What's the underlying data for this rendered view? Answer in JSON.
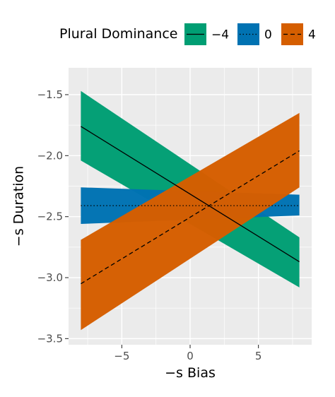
{
  "chart_data": {
    "type": "line",
    "title": "",
    "xlabel": "−s Bias",
    "ylabel": "−s Duration",
    "xlim": [
      -8.9,
      8.9
    ],
    "ylim": [
      -3.55,
      -1.28
    ],
    "x_ticks": [
      -5,
      0,
      5
    ],
    "x_tick_labels": [
      "−5",
      "0",
      "5"
    ],
    "y_ticks": [
      -3.5,
      -3.0,
      -2.5,
      -2.0,
      -1.5
    ],
    "y_tick_labels": [
      "−3.5",
      "−3.0",
      "−2.5",
      "−2.0",
      "−1.5"
    ],
    "grid": true,
    "legend": {
      "title": "Plural Dominance",
      "position": "top"
    },
    "series": [
      {
        "name": "−4",
        "color": "#009E73",
        "linestyle": "solid",
        "x": [
          -8,
          8
        ],
        "y": [
          -1.76,
          -2.87
        ],
        "ribbon_lower": [
          -2.04,
          -3.08
        ],
        "ribbon_upper": [
          -1.47,
          -2.67
        ]
      },
      {
        "name": "0",
        "color": "#0072B2",
        "linestyle": "dotted",
        "x": [
          -8,
          8
        ],
        "y": [
          -2.41,
          -2.41
        ],
        "ribbon_lower": [
          -2.56,
          -2.49
        ],
        "ribbon_upper": [
          -2.26,
          -2.32
        ]
      },
      {
        "name": "4",
        "color": "#D55E00",
        "linestyle": "dashed",
        "x": [
          -8,
          8
        ],
        "y": [
          -3.05,
          -1.96
        ],
        "ribbon_lower": [
          -3.43,
          -2.26
        ],
        "ribbon_upper": [
          -2.69,
          -1.65
        ]
      }
    ]
  }
}
